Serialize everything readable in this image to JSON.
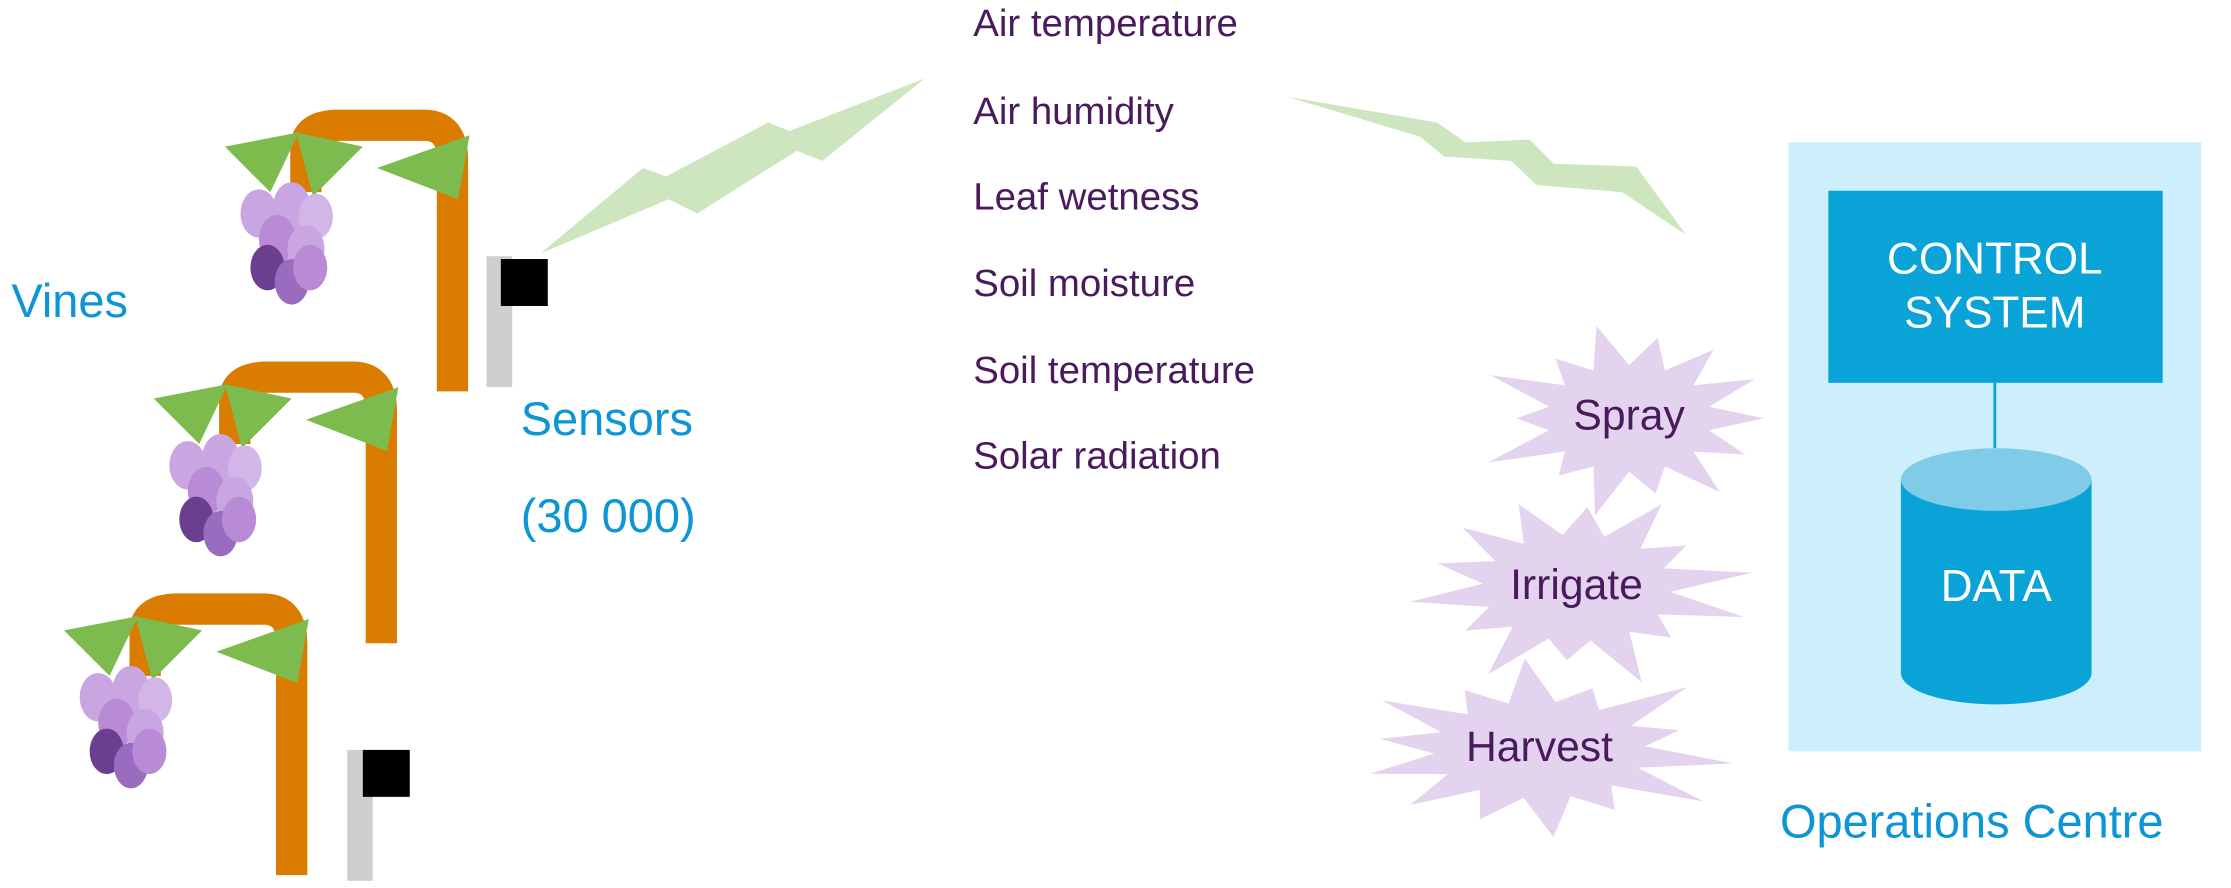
{
  "vines": {
    "label": "Vines"
  },
  "sensors": {
    "label": "Sensors",
    "count": "(30 000)"
  },
  "measurements": [
    "Air temperature",
    "Air humidity",
    "Leaf wetness",
    "Soil moisture",
    "Soil temperature",
    "Solar radiation"
  ],
  "actions": [
    "Spray",
    "Irrigate",
    "Harvest"
  ],
  "operations_centre": {
    "label": "Operations Centre",
    "control_system": [
      "CONTROL",
      "SYSTEM"
    ],
    "data": "DATA"
  }
}
